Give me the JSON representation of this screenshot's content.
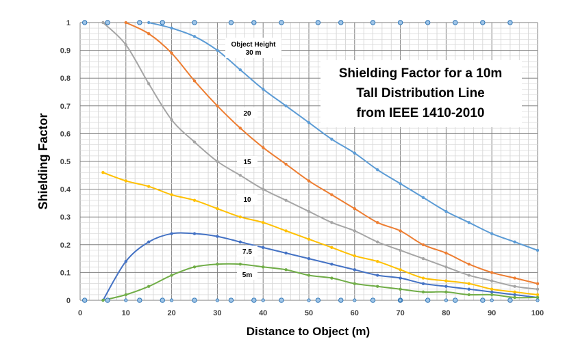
{
  "chart_data": {
    "type": "line",
    "title_lines": [
      "Shielding Factor for a 10m",
      "Tall Distribution Line",
      "from IEEE 1410-2010"
    ],
    "xlabel": "Distance to Object (m)",
    "ylabel": "Shielding Factor",
    "xlim": [
      0,
      100
    ],
    "ylim": [
      0,
      1
    ],
    "x_ticks": [
      0,
      10,
      20,
      30,
      40,
      50,
      60,
      70,
      80,
      90,
      100
    ],
    "y_ticks": [
      0,
      0.1,
      0.2,
      0.3,
      0.4,
      0.5,
      0.6,
      0.7,
      0.8,
      0.9,
      1
    ],
    "y_tick_labels": [
      "0",
      "0.1",
      "0.2",
      "0.3",
      "0.4",
      "0.5",
      "0.6",
      "0.7",
      "0.8",
      "0.9",
      "1"
    ],
    "grid": true,
    "series": [
      {
        "name": "30 m",
        "label_lines": [
          "Object Height",
          "30 m"
        ],
        "color": "#5B9BD5",
        "points": [
          [
            15,
            1
          ],
          [
            20,
            0.98
          ],
          [
            25,
            0.95
          ],
          [
            30,
            0.9
          ],
          [
            35,
            0.83
          ],
          [
            40,
            0.76
          ],
          [
            45,
            0.7
          ],
          [
            50,
            0.64
          ],
          [
            55,
            0.58
          ],
          [
            60,
            0.53
          ],
          [
            65,
            0.47
          ],
          [
            70,
            0.42
          ],
          [
            75,
            0.37
          ],
          [
            80,
            0.32
          ],
          [
            85,
            0.28
          ],
          [
            90,
            0.24
          ],
          [
            95,
            0.21
          ],
          [
            100,
            0.18
          ]
        ]
      },
      {
        "name": "20",
        "label_lines": [
          "20"
        ],
        "color": "#ED7D31",
        "points": [
          [
            10,
            1
          ],
          [
            15,
            0.96
          ],
          [
            20,
            0.89
          ],
          [
            25,
            0.79
          ],
          [
            30,
            0.7
          ],
          [
            35,
            0.62
          ],
          [
            40,
            0.55
          ],
          [
            45,
            0.49
          ],
          [
            50,
            0.43
          ],
          [
            55,
            0.38
          ],
          [
            60,
            0.33
          ],
          [
            65,
            0.28
          ],
          [
            70,
            0.25
          ],
          [
            75,
            0.2
          ],
          [
            80,
            0.17
          ],
          [
            85,
            0.13
          ],
          [
            90,
            0.1
          ],
          [
            95,
            0.08
          ],
          [
            100,
            0.06
          ]
        ]
      },
      {
        "name": "15",
        "label_lines": [
          "15"
        ],
        "color": "#A5A5A5",
        "points": [
          [
            5,
            1
          ],
          [
            10,
            0.92
          ],
          [
            15,
            0.78
          ],
          [
            20,
            0.65
          ],
          [
            25,
            0.57
          ],
          [
            30,
            0.5
          ],
          [
            35,
            0.45
          ],
          [
            40,
            0.4
          ],
          [
            45,
            0.36
          ],
          [
            50,
            0.32
          ],
          [
            55,
            0.28
          ],
          [
            60,
            0.25
          ],
          [
            65,
            0.21
          ],
          [
            70,
            0.18
          ],
          [
            75,
            0.15
          ],
          [
            80,
            0.12
          ],
          [
            85,
            0.09
          ],
          [
            90,
            0.07
          ],
          [
            95,
            0.05
          ],
          [
            100,
            0.04
          ]
        ]
      },
      {
        "name": "10",
        "label_lines": [
          "10"
        ],
        "color": "#FFC000",
        "points": [
          [
            5,
            0.46
          ],
          [
            10,
            0.43
          ],
          [
            15,
            0.41
          ],
          [
            20,
            0.38
          ],
          [
            25,
            0.36
          ],
          [
            30,
            0.33
          ],
          [
            35,
            0.3
          ],
          [
            40,
            0.28
          ],
          [
            45,
            0.25
          ],
          [
            50,
            0.22
          ],
          [
            55,
            0.19
          ],
          [
            60,
            0.16
          ],
          [
            65,
            0.14
          ],
          [
            70,
            0.11
          ],
          [
            75,
            0.08
          ],
          [
            80,
            0.07
          ],
          [
            85,
            0.06
          ],
          [
            90,
            0.04
          ],
          [
            95,
            0.03
          ],
          [
            100,
            0.02
          ]
        ]
      },
      {
        "name": "7.5",
        "label_lines": [
          "7.5"
        ],
        "color": "#4472C4",
        "points": [
          [
            5,
            0
          ],
          [
            10,
            0.14
          ],
          [
            15,
            0.21
          ],
          [
            20,
            0.24
          ],
          [
            25,
            0.24
          ],
          [
            30,
            0.23
          ],
          [
            35,
            0.21
          ],
          [
            40,
            0.19
          ],
          [
            45,
            0.17
          ],
          [
            50,
            0.15
          ],
          [
            55,
            0.13
          ],
          [
            60,
            0.11
          ],
          [
            65,
            0.09
          ],
          [
            70,
            0.08
          ],
          [
            75,
            0.06
          ],
          [
            80,
            0.05
          ],
          [
            85,
            0.04
          ],
          [
            90,
            0.03
          ],
          [
            95,
            0.02
          ],
          [
            100,
            0.01
          ]
        ]
      },
      {
        "name": "5m",
        "label_lines": [
          "5m"
        ],
        "color": "#70AD47",
        "points": [
          [
            5,
            0
          ],
          [
            10,
            0.02
          ],
          [
            15,
            0.05
          ],
          [
            20,
            0.09
          ],
          [
            25,
            0.12
          ],
          [
            30,
            0.13
          ],
          [
            35,
            0.13
          ],
          [
            40,
            0.12
          ],
          [
            45,
            0.11
          ],
          [
            50,
            0.09
          ],
          [
            55,
            0.08
          ],
          [
            60,
            0.06
          ],
          [
            65,
            0.05
          ],
          [
            70,
            0.04
          ],
          [
            75,
            0.03
          ],
          [
            80,
            0.03
          ],
          [
            85,
            0.02
          ],
          [
            90,
            0.02
          ],
          [
            95,
            0.01
          ],
          [
            100,
            0.01
          ]
        ]
      }
    ],
    "boundary_markers": {
      "color": "#9DC3E6",
      "stroke": "#2E75B6",
      "top_x": [
        1,
        6,
        13,
        18,
        25,
        33,
        38,
        44,
        52,
        57,
        64,
        70,
        76,
        82,
        88,
        94
      ],
      "bottom_x": [
        1,
        6,
        13,
        18,
        25,
        33,
        38,
        44,
        52,
        57,
        64,
        70,
        76,
        82,
        88,
        94
      ]
    }
  }
}
